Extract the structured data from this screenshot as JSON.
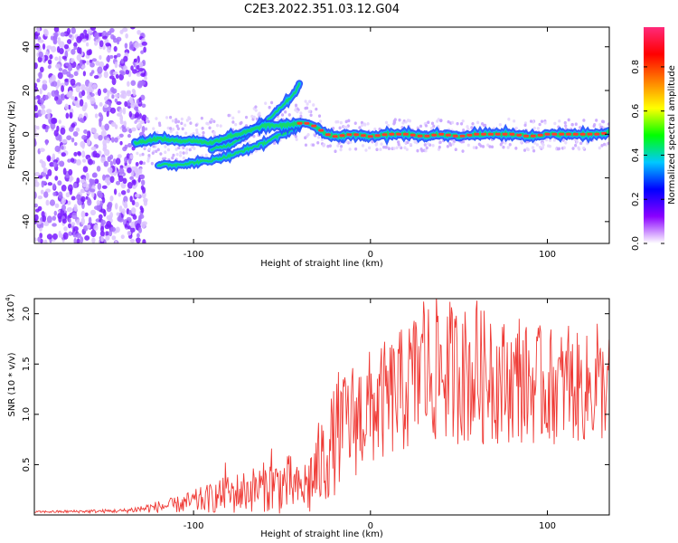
{
  "title": "C2E3.2022.351.03.12.G04",
  "colors": {
    "snr_line": "#ef3b36",
    "scatter": "#9b4dff",
    "track_core": "#ff3b2f",
    "track_edge": "#1f4dff",
    "axis": "#000000"
  },
  "colorbar": {
    "label": "Normalized spectral amplitude",
    "ticks": [
      "0.0",
      "0.2",
      "0.4",
      "0.6",
      "0.8"
    ],
    "tick_values": [
      0.0,
      0.2,
      0.4,
      0.6,
      0.8
    ],
    "range": [
      0,
      0.98
    ],
    "stops": [
      "#ffffff",
      "#8a00ff",
      "#0000ff",
      "#00c8ff",
      "#00ff00",
      "#ffff00",
      "#ff8000",
      "#ff0000",
      "#ff2a7a"
    ]
  },
  "chart_data": [
    {
      "type": "heatmap",
      "xlabel": "Height of straight line (km)",
      "ylabel": "Frequency (Hz)",
      "xlim": [
        -190,
        135
      ],
      "ylim": [
        -50,
        49
      ],
      "x_ticks": [
        -100,
        0,
        100
      ],
      "x_tick_labels": [
        "-100",
        "0",
        "100"
      ],
      "y_ticks": [
        -40,
        -20,
        0,
        20,
        40
      ],
      "y_tick_labels": [
        "-40",
        "-20",
        "0",
        "20",
        "40"
      ],
      "grid": false,
      "noise_region_x": [
        -190,
        -133
      ],
      "main_track": {
        "x": [
          -133,
          -120,
          -110,
          -100,
          -90,
          -80,
          -70,
          -60,
          -50,
          -40,
          -35,
          -30,
          -25,
          -20,
          -10,
          0,
          10,
          20,
          30,
          40,
          50,
          60,
          70,
          80,
          90,
          100,
          110,
          120,
          130,
          135
        ],
        "y": [
          -4,
          -2,
          -3,
          -3,
          -4,
          -1,
          1,
          4,
          4,
          5,
          5,
          3,
          0,
          -1,
          0,
          -1,
          0,
          0,
          -1,
          0,
          -1,
          0,
          0,
          0,
          -1,
          0,
          0,
          0,
          0,
          1
        ]
      },
      "upper_branch": {
        "x": [
          -90,
          -80,
          -70,
          -60,
          -55,
          -50,
          -45,
          -42,
          -40
        ],
        "y": [
          -7,
          -5,
          0,
          5,
          9,
          13,
          17,
          20,
          23
        ]
      },
      "lower_branch": {
        "x": [
          -120,
          -110,
          -100,
          -90,
          -80,
          -70,
          -60,
          -50,
          -45,
          -40
        ],
        "y": [
          -14,
          -14,
          -13,
          -12,
          -10,
          -7,
          -4,
          0,
          2,
          4
        ]
      }
    },
    {
      "type": "line",
      "xlabel": "Height of straight line (km)",
      "ylabel": "SNR (10 * v/v)",
      "y_scale_label": "(x10",
      "y_scale_exponent": "4",
      "y_scale_suffix": ")",
      "xlim": [
        -190,
        135
      ],
      "ylim": [
        0,
        2.15
      ],
      "x_ticks": [
        -100,
        0,
        100
      ],
      "x_tick_labels": [
        "-100",
        "0",
        "100"
      ],
      "y_ticks": [
        0.5,
        1.0,
        1.5,
        2.0
      ],
      "y_tick_labels": [
        "0.5",
        "1.0",
        "1.5",
        "2.0"
      ],
      "grid": false,
      "series": [
        {
          "name": "",
          "envelope": {
            "x": [
              -190,
              -140,
              -125,
              -110,
              -100,
              -90,
              -80,
              -70,
              -60,
              -50,
              -45,
              -40,
              -35,
              -30,
              -25,
              -20,
              -15,
              -10,
              -5,
              0,
              10,
              20,
              25,
              30,
              40,
              50,
              60,
              70,
              80,
              90,
              100,
              110,
              120,
              130,
              135
            ],
            "mean": [
              0.03,
              0.04,
              0.07,
              0.1,
              0.13,
              0.17,
              0.2,
              0.24,
              0.28,
              0.3,
              0.3,
              0.25,
              0.3,
              0.45,
              0.6,
              0.75,
              0.85,
              0.95,
              1.0,
              1.05,
              1.15,
              1.25,
              1.35,
              1.4,
              1.45,
              1.4,
              1.38,
              1.35,
              1.32,
              1.3,
              1.28,
              1.28,
              1.25,
              1.25,
              1.3
            ],
            "spread": [
              0.01,
              0.02,
              0.05,
              0.08,
              0.12,
              0.15,
              0.2,
              0.22,
              0.25,
              0.3,
              0.3,
              0.2,
              0.35,
              0.45,
              0.5,
              0.55,
              0.55,
              0.6,
              0.6,
              0.6,
              0.6,
              0.65,
              0.7,
              0.75,
              0.75,
              0.7,
              0.7,
              0.65,
              0.6,
              0.6,
              0.6,
              0.55,
              0.55,
              0.55,
              0.5
            ]
          },
          "peaks": [
            {
              "x": -82,
              "y": 0.52
            },
            {
              "x": -56,
              "y": 0.66
            },
            {
              "x": -27,
              "y": 0.63
            },
            {
              "x": -18,
              "y": 1.42
            },
            {
              "x": -14,
              "y": 1.3
            },
            {
              "x": 26,
              "y": 1.85
            },
            {
              "x": 30,
              "y": 2.12
            },
            {
              "x": 38,
              "y": 1.98
            },
            {
              "x": 52,
              "y": 1.9
            },
            {
              "x": 60,
              "y": 2.13
            },
            {
              "x": 68,
              "y": 1.9
            },
            {
              "x": 84,
              "y": 1.95
            },
            {
              "x": 96,
              "y": 1.82
            },
            {
              "x": 112,
              "y": 1.88
            },
            {
              "x": 128,
              "y": 1.9
            }
          ]
        }
      ]
    }
  ]
}
